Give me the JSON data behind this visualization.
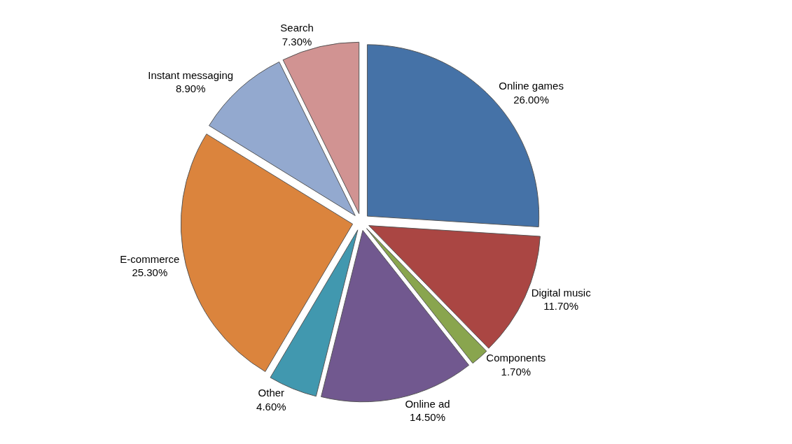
{
  "chart_data": {
    "type": "pie",
    "categories": [
      "Online games",
      "Digital music",
      "Components",
      "Online ad",
      "Other",
      "E-commerce",
      "Instant messaging",
      "Search"
    ],
    "values": [
      26.0,
      11.7,
      1.7,
      14.5,
      4.6,
      25.3,
      8.9,
      7.3
    ],
    "value_labels": [
      "26.00%",
      "11.70%",
      "1.70%",
      "14.50%",
      "4.60%",
      "25.30%",
      "8.90%",
      "7.30%"
    ],
    "colors": [
      "#4572a7",
      "#aa4643",
      "#89a54e",
      "#71588f",
      "#4198af",
      "#db843d",
      "#93a9cf",
      "#d19392"
    ],
    "legend": false
  }
}
